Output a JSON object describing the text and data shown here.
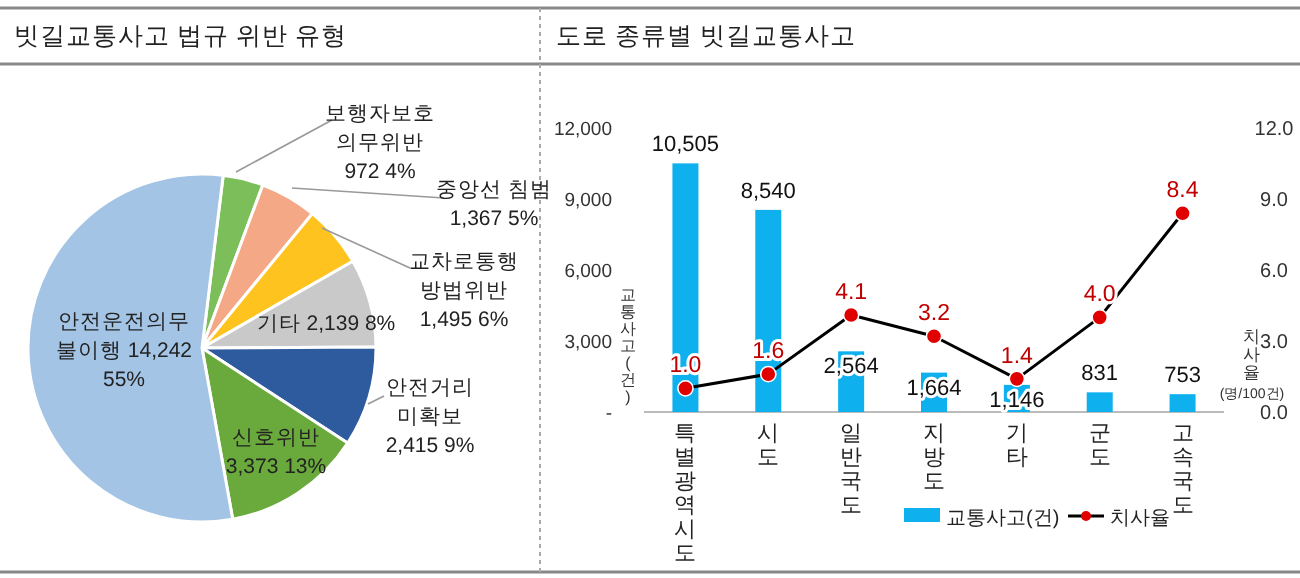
{
  "chart_data": [
    {
      "type": "pie",
      "title": "빗길교통사고 법규 위반 유형",
      "categories": [
        "보행자보호\n의무위반",
        "중앙선 침범",
        "교차로통행\n방법위반",
        "기타",
        "안전거리\n미확보",
        "신호위반",
        "안전운전의무\n불이행"
      ],
      "values": [
        972,
        1367,
        1495,
        2139,
        2415,
        3373,
        14242
      ],
      "value_labels": [
        "972 4%",
        "1,367 5%",
        "1,495 6%",
        "2,139 8%",
        "2,415 9%",
        "3,373 13%",
        "14,242 55%"
      ],
      "colors": [
        "#7cbf5a",
        "#f4a886",
        "#ffc31f",
        "#c9c9c9",
        "#2e5a9e",
        "#6aaa3c",
        "#a3c4e4"
      ]
    },
    {
      "type": "bar",
      "title": "도로 종류별 빗길교통사고",
      "categories": [
        "특별광역시도",
        "시도",
        "일반국도",
        "지방도",
        "기타",
        "군도",
        "고속국도"
      ],
      "ylabel": "교통사고(건)",
      "y2label": "치사율 (명/100건)",
      "ylim": [
        0,
        12000
      ],
      "yticks": [
        {
          "value": 0,
          "label": "-"
        },
        {
          "value": 3000,
          "label": "3,000"
        },
        {
          "value": 6000,
          "label": "6,000"
        },
        {
          "value": 9000,
          "label": "9,000"
        },
        {
          "value": 12000,
          "label": "12,000"
        }
      ],
      "y2lim": [
        0,
        12
      ],
      "y2ticks": [
        {
          "value": 0,
          "label": "0.0"
        },
        {
          "value": 3,
          "label": "3.0"
        },
        {
          "value": 6,
          "label": "6.0"
        },
        {
          "value": 9,
          "label": "9.0"
        },
        {
          "value": 12,
          "label": "12.0"
        }
      ],
      "legend": "bottom",
      "series": [
        {
          "name": "교통사고(건)",
          "type": "bar",
          "color": "#0fb0ee",
          "values": [
            10505,
            8540,
            2564,
            1664,
            1146,
            831,
            753
          ],
          "value_labels": [
            "10,505",
            "8,540",
            "2,564",
            "1,664",
            "1,146",
            "831",
            "753"
          ]
        },
        {
          "name": "치사율",
          "type": "line",
          "axis": "y2",
          "color": "#000000",
          "marker": "circle",
          "values": [
            1.0,
            1.6,
            4.1,
            3.2,
            1.4,
            4.0,
            8.4
          ],
          "value_labels": [
            "1.0",
            "1.6",
            "4.1",
            "3.2",
            "1.4",
            "4.0",
            "8.4"
          ]
        }
      ]
    }
  ]
}
